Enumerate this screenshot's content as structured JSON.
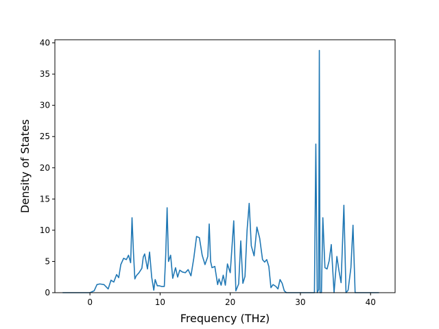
{
  "chart_data": {
    "type": "line",
    "title": "",
    "xlabel": "Frequency (THz)",
    "ylabel": "Density of States",
    "xlim": [
      -5,
      43.5
    ],
    "ylim": [
      0,
      40.5
    ],
    "xticks": [
      0,
      10,
      20,
      30,
      40
    ],
    "yticks": [
      0,
      5,
      10,
      15,
      20,
      25,
      30,
      35,
      40
    ],
    "grid": false,
    "legend": "none",
    "color": "#1f77b4",
    "series": [
      {
        "x": [
          -3.9,
          -2,
          0,
          0.6,
          1,
          1.4,
          2,
          2.6,
          3,
          3.4,
          3.8,
          4.1,
          4.4,
          4.8,
          5.2,
          5.5,
          5.8,
          6,
          6.2,
          6.4,
          6.6,
          7,
          7.4,
          7.6,
          7.8,
          8.2,
          8.5,
          8.8,
          9.1,
          9.3,
          9.6,
          9.9,
          10.2,
          10.6,
          10.8,
          11.0,
          11.2,
          11.5,
          11.8,
          12.2,
          12.5,
          12.8,
          13.2,
          13.6,
          14,
          14.4,
          14.8,
          15.2,
          15.6,
          16,
          16.4,
          16.8,
          17.0,
          17.2,
          17.4,
          17.8,
          18.2,
          18.4,
          18.7,
          19.0,
          19.3,
          19.6,
          20,
          20.5,
          20.8,
          21.2,
          21.5,
          21.8,
          22.1,
          22.4,
          22.7,
          23.0,
          23.4,
          23.8,
          24.2,
          24.6,
          24.9,
          25.2,
          25.5,
          25.8,
          26.1,
          26.5,
          26.8,
          27.1,
          27.4,
          27.7,
          28,
          30,
          32,
          32.2,
          32.4,
          32.6,
          32.7,
          32.8,
          33.0,
          33.2,
          33.5,
          33.8,
          34.1,
          34.4,
          34.8,
          35.2,
          35.5,
          35.8,
          36.2,
          36.5,
          36.8,
          37.2,
          37.5,
          37.8,
          38,
          41.2
        ],
        "y": [
          0,
          0,
          0,
          0.3,
          1.3,
          1.4,
          1.3,
          0.6,
          2.0,
          1.7,
          2.9,
          2.4,
          4.5,
          5.5,
          5.3,
          6.0,
          4.8,
          12.0,
          6.5,
          2.2,
          2.7,
          3.2,
          3.9,
          5.7,
          6.2,
          3.8,
          6.5,
          2.5,
          0.4,
          2.1,
          1.1,
          1.1,
          1.0,
          1.0,
          6.0,
          13.6,
          5.0,
          6.0,
          2.3,
          4.0,
          2.5,
          3.6,
          3.3,
          3.2,
          3.7,
          2.7,
          5.5,
          9.0,
          8.8,
          6.0,
          4.5,
          5.8,
          11.0,
          5.0,
          4.0,
          4.2,
          1.3,
          2.2,
          1.2,
          2.8,
          1.2,
          4.6,
          3.2,
          11.5,
          0.3,
          1.4,
          8.3,
          1.5,
          2.6,
          10.0,
          14.3,
          7.5,
          5.9,
          10.5,
          8.7,
          5.3,
          4.9,
          5.3,
          4.2,
          0.8,
          1.3,
          1.0,
          0.6,
          2.1,
          1.5,
          0.3,
          0,
          0,
          0,
          23.8,
          0,
          0.5,
          38.8,
          0,
          0,
          12.0,
          4.0,
          3.8,
          5.1,
          7.7,
          0,
          5.8,
          3.5,
          1.6,
          14.0,
          0,
          0.4,
          4.0,
          10.8,
          0,
          0,
          0
        ]
      }
    ]
  }
}
